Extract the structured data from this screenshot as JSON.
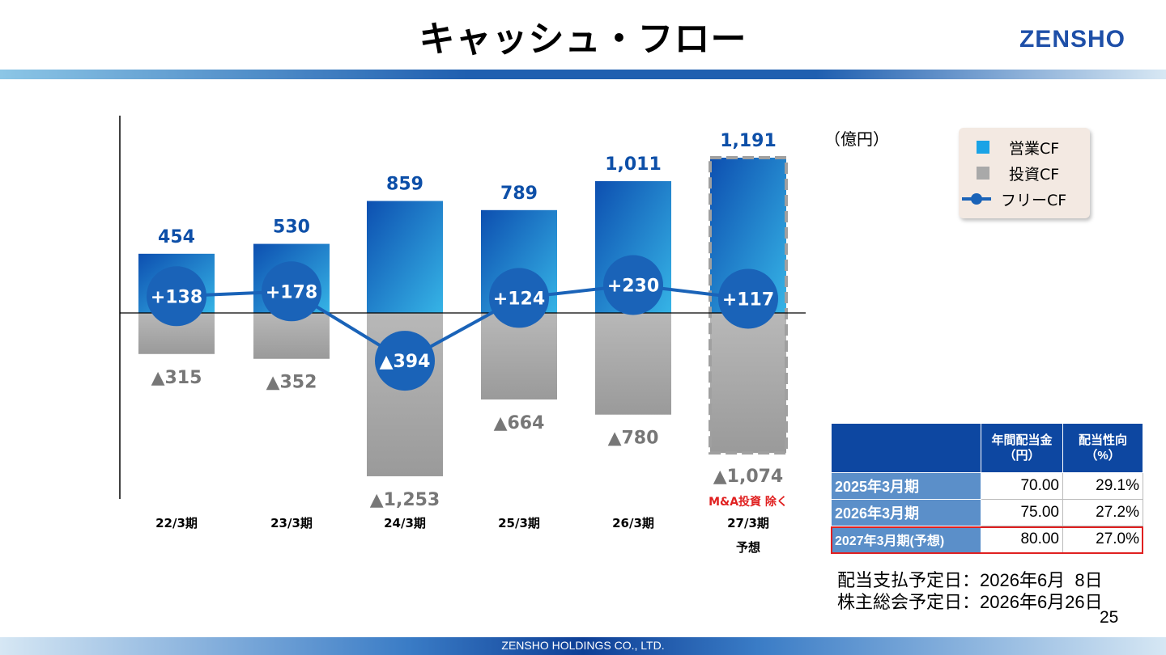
{
  "title": "キャッシュ・フロー",
  "logo": "ZENSHO",
  "unit": "（億円）",
  "legend": {
    "op": "営業CF",
    "inv": "投資CF",
    "free": "フリーCF"
  },
  "colors": {
    "op_dark": "#0d4fb0",
    "op_light": "#36b4e6",
    "inv": "#a9a9a9",
    "free": "#1a63b8",
    "value_blue": "#0d4fa8",
    "value_gray": "#777777",
    "note_red": "#e02020"
  },
  "chart_data": {
    "type": "bar",
    "categories": [
      "22/3期",
      "23/3期",
      "24/3期",
      "25/3期",
      "26/3期",
      "27/3期"
    ],
    "category_sub": [
      "",
      "",
      "",
      "",
      "",
      "予想"
    ],
    "series": [
      {
        "name": "営業CF",
        "values": [
          454,
          530,
          859,
          789,
          1011,
          1191
        ],
        "labels": [
          "454",
          "530",
          "859",
          "789",
          "1,011",
          "1,191"
        ]
      },
      {
        "name": "投資CF",
        "values": [
          -315,
          -352,
          -1253,
          -664,
          -780,
          -1074
        ],
        "labels": [
          "▲315",
          "▲352",
          "▲1,253",
          "▲664",
          "▲780",
          "▲1,074"
        ]
      },
      {
        "name": "フリーCF",
        "type": "line",
        "values": [
          138,
          178,
          -394,
          124,
          230,
          117
        ],
        "labels": [
          "+138",
          "+178",
          "▲394",
          "+124",
          "+230",
          "+117"
        ]
      }
    ],
    "forecast_index": 5,
    "annotation": "M&A投資 除く"
  },
  "table": {
    "headers": [
      "",
      "年間配当金\n（円）",
      "配当性向\n（%）"
    ],
    "rows": [
      {
        "label": "2025年3月期",
        "dividend": "70.00",
        "payout": "29.1%"
      },
      {
        "label": "2026年3月期",
        "dividend": "75.00",
        "payout": "27.2%"
      },
      {
        "label": "2027年3月期(予想)",
        "dividend": "80.00",
        "payout": "27.0%"
      }
    ]
  },
  "notes": {
    "payment": "配当支払予定日：2026年6月  8日",
    "meeting": "株主総会予定日：2026年6月26日"
  },
  "page_number": "25",
  "footer": "ZENSHO HOLDINGS CO., LTD."
}
